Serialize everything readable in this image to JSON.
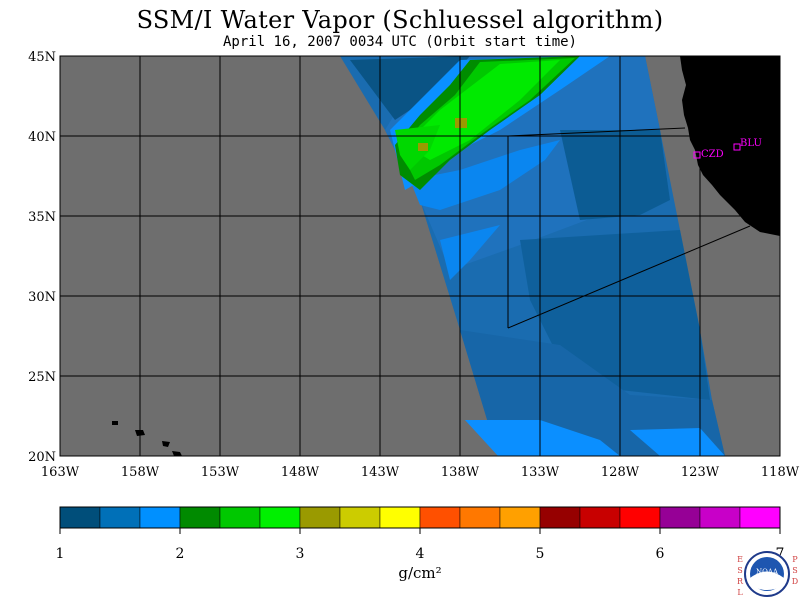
{
  "title": "SSM/I Water Vapor (Schluessel algorithm)",
  "subtitle": "April 16, 2007  0034 UTC  (Orbit start time)",
  "map": {
    "lon_labels": [
      "163W",
      "158W",
      "153W",
      "148W",
      "143W",
      "138W",
      "133W",
      "128W",
      "123W",
      "118W"
    ],
    "lat_labels": [
      "45N",
      "40N",
      "35N",
      "30N",
      "25N",
      "20N"
    ],
    "lon_range": [
      -163,
      -118
    ],
    "lat_range": [
      20,
      45
    ],
    "stations": [
      {
        "label": "CZD",
        "color": "#ff00ff"
      },
      {
        "label": "BLU",
        "color": "#ff00ff"
      }
    ],
    "colors": {
      "no_data": "#6e6e6e",
      "land": "#000000",
      "grid": "#000000"
    }
  },
  "colorbar": {
    "tick_labels": [
      "1",
      "2",
      "3",
      "4",
      "5",
      "6",
      "7"
    ],
    "unit": "g/cm²",
    "colors": [
      "#004e7a",
      "#0070b8",
      "#0090ff",
      "#008a00",
      "#00c800",
      "#00f000",
      "#9a9a00",
      "#cccc00",
      "#ffff00",
      "#ff5000",
      "#ff7800",
      "#ffa000",
      "#960000",
      "#c80000",
      "#ff0000",
      "#960096",
      "#c800c8",
      "#ff00ff"
    ]
  },
  "logo": {
    "text": "NOAA",
    "side_left": "ESRL",
    "side_right": "PSD"
  }
}
